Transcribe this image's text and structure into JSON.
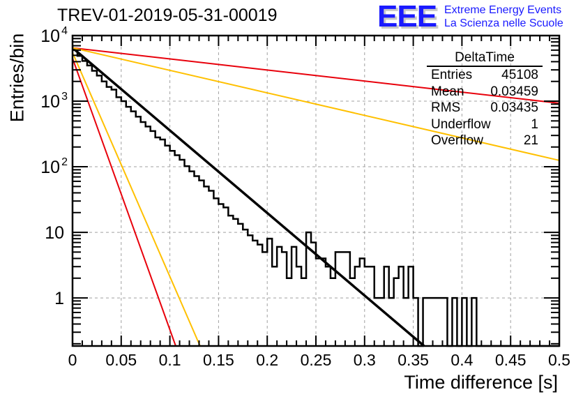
{
  "header": {
    "title": "TREV-01-2019-05-31-00019",
    "logo_text": "EEE",
    "logo_line1": "Extreme Energy Events",
    "logo_line2": "La Scienza nelle Scuole"
  },
  "stats_box": {
    "title": "DeltaTime",
    "rows": [
      {
        "label": "Entries",
        "value": "45108"
      },
      {
        "label": "Mean",
        "value": "0.03459"
      },
      {
        "label": "RMS",
        "value": "0.03435"
      },
      {
        "label": "Underflow",
        "value": "1"
      },
      {
        "label": "Overflow",
        "value": "21"
      }
    ]
  },
  "colors": {
    "histogram": "#000000",
    "fit": "#000000",
    "red_lines": "#e8000b",
    "yellow_lines": "#ffc000",
    "grid": "#a0a0a0",
    "logo": "#1a1aff"
  },
  "chart_data": {
    "type": "histogram",
    "title": "TREV-01-2019-05-31-00019",
    "xlabel": "Time difference [s]",
    "ylabel": "Entries/bin",
    "xlim": [
      0,
      0.5
    ],
    "ylim": [
      0.185,
      10000
    ],
    "yscale": "log",
    "grid": true,
    "x_ticks": [
      "0",
      "0.05",
      "0.1",
      "0.15",
      "0.2",
      "0.25",
      "0.3",
      "0.35",
      "0.4",
      "0.45",
      "0.5"
    ],
    "y_ticks": [
      {
        "value": 1,
        "label": "1"
      },
      {
        "value": 10,
        "label": "10"
      },
      {
        "value": 100,
        "label": "10^2"
      },
      {
        "value": 1000,
        "label": "10^3"
      },
      {
        "value": 10000,
        "label": "10^4"
      }
    ],
    "bin_width": 0.005,
    "histogram_values": [
      6000,
      4900,
      4100,
      3500,
      2900,
      2450,
      2000,
      1650,
      1500,
      1150,
      1000,
      820,
      700,
      580,
      480,
      410,
      350,
      280,
      260,
      210,
      175,
      150,
      128,
      102,
      85,
      72,
      62,
      50,
      43,
      33,
      27,
      24,
      18,
      16,
      13.5,
      11,
      9,
      7.5,
      6.5,
      5,
      8,
      3,
      6,
      5,
      2,
      6,
      3,
      2,
      10,
      7,
      4,
      4,
      3,
      2,
      5,
      5,
      5,
      2,
      3,
      4,
      3,
      3,
      1,
      1,
      3,
      1,
      2,
      3,
      1,
      3,
      1,
      0,
      1,
      1,
      1,
      1,
      1,
      0,
      1,
      0,
      1,
      0,
      1,
      0,
      0,
      0,
      0,
      0,
      0,
      0,
      0,
      0,
      0,
      0,
      0,
      0,
      0,
      0,
      0,
      0,
      0,
      0,
      0,
      0,
      0,
      0,
      0,
      0,
      0,
      0,
      0,
      0,
      1,
      0,
      0,
      0,
      0,
      0,
      0,
      0,
      0,
      0,
      0,
      0
    ],
    "lines": [
      {
        "name": "fit",
        "color": "#000000",
        "y0": 6500,
        "tau": 0.0345
      },
      {
        "name": "red-slow",
        "color": "#e8000b",
        "y0": 6500,
        "y_at_05": 930
      },
      {
        "name": "yellow-slow",
        "color": "#ffc000",
        "y0": 6500,
        "y_at_05": 125
      },
      {
        "name": "red-fast",
        "color": "#e8000b",
        "y0": 4500,
        "x_at_ymin": 0.106
      },
      {
        "name": "yellow-fast",
        "color": "#ffc000",
        "y0": 5500,
        "x_at_ymin": 0.131
      }
    ]
  }
}
